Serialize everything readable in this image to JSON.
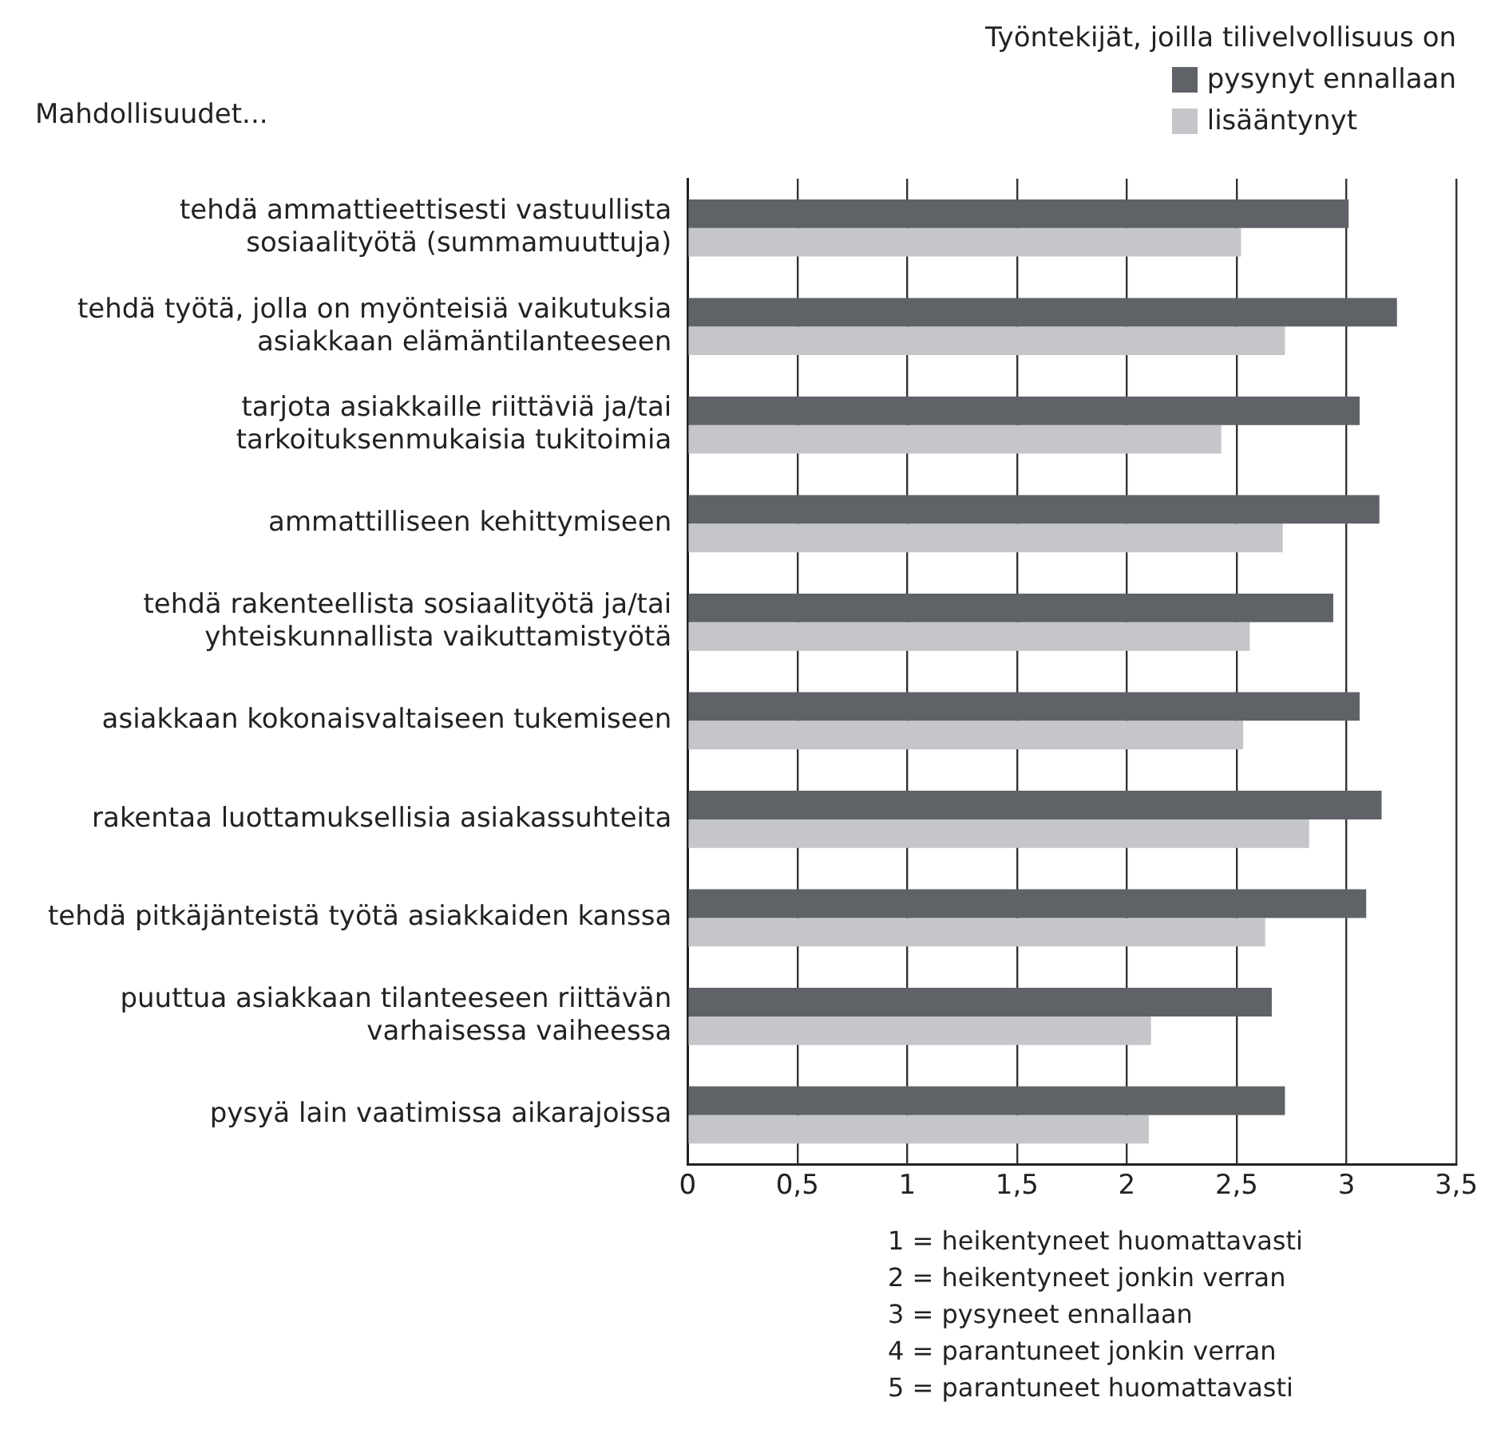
{
  "chart_data": {
    "type": "bar",
    "orientation": "horizontal",
    "ylabel": "Mahdollisuudet...",
    "legend_title": "Työntekijät, joilla tilivelvollisuus on",
    "legend": "top right",
    "grid": "x",
    "categories": [
      "tehdä ammattieettisesti vastuullista\nsosiaalityötä (summamuuttuja)",
      "tehdä työtä, jolla on myönteisiä vaikutuksia\nasiakkaan elämäntilanteeseen",
      "tarjota asiakkaille riittäviä ja/tai\ntarkoituksenmukaisia tukitoimia",
      "ammattilliseen kehittymiseen",
      "tehdä rakenteellista sosiaalityötä ja/tai\nyhteiskunnallista vaikuttamistyötä",
      "asiakkaan kokonaisvaltaiseen tukemiseen",
      "rakentaa luottamuksellisia asiakassuhteita",
      "tehdä pitkäjänteistä työtä asiakkaiden kanssa",
      "puuttua asiakkaan tilanteeseen riittävän\nvarhaisessa vaiheessa",
      "pysyä lain vaatimissa aikarajoissa"
    ],
    "series": [
      {
        "name": "pysynyt ennallaan",
        "color": "#5f6266",
        "values": [
          3.01,
          3.23,
          3.06,
          3.15,
          2.94,
          3.06,
          3.16,
          3.09,
          2.66,
          2.72
        ]
      },
      {
        "name": "lisääntynyt",
        "color": "#c4c6c9",
        "values": [
          2.52,
          2.72,
          2.43,
          2.71,
          2.56,
          2.53,
          2.83,
          2.63,
          2.11,
          2.1
        ]
      }
    ],
    "xlim": [
      0,
      3.5
    ],
    "xticks": [
      0,
      {
        "value": 0.5,
        "label": "0,5"
      },
      1,
      {
        "value": 1.5,
        "label": "1,5"
      },
      2,
      {
        "value": 2.5,
        "label": "2,5"
      },
      3,
      {
        "value": 3.5,
        "label": "3,5"
      }
    ],
    "annotations": [
      "1 = heikentyneet huomattavasti",
      "2 = heikentyneet jonkin verran",
      "3 = pysyneet ennallaan",
      "4 = parantuneet jonkin verran",
      "5 = parantuneet huomattavasti"
    ]
  }
}
